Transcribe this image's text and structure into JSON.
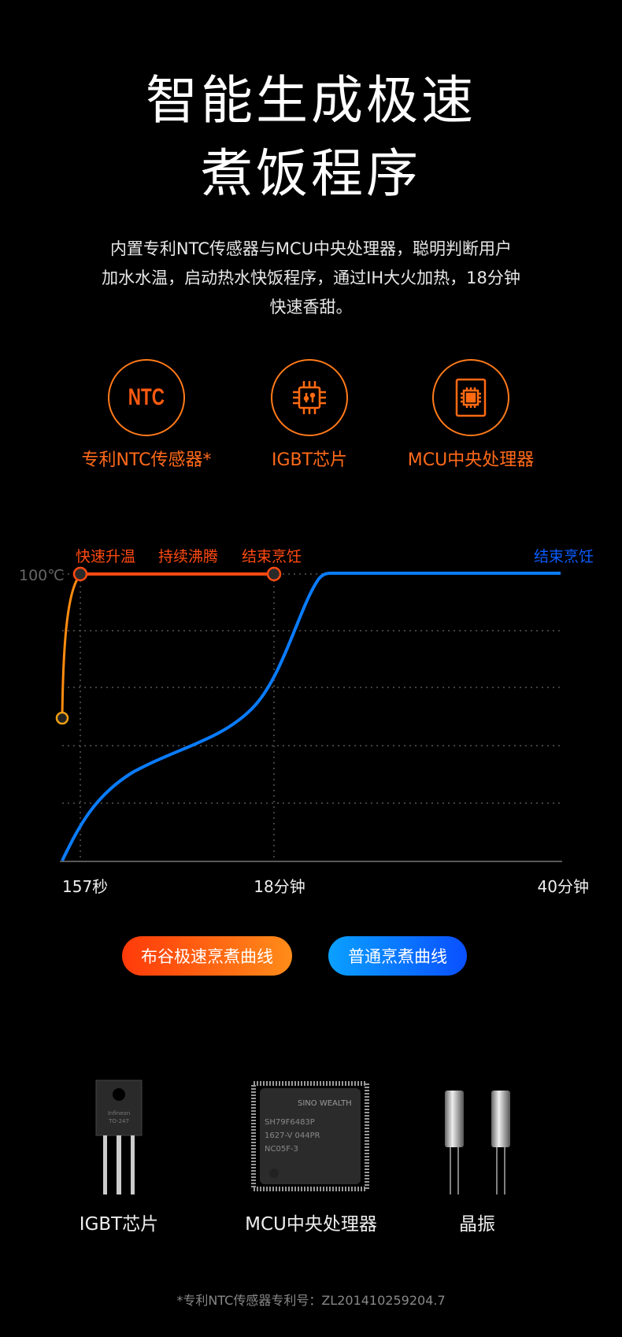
{
  "title": {
    "line1": "智能生成极速",
    "line2": "煮饭程序"
  },
  "description": {
    "line1": "内置专利NTC传感器与MCU中央处理器，聪明判断用户",
    "line2": "加水水温，启动热水快饭程序，通过IH大火加热，18分钟",
    "line3": "快速香甜。"
  },
  "features": [
    {
      "icon": "ntc-icon",
      "icon_text": "NTC",
      "label": "专利NTC传感器*"
    },
    {
      "icon": "igbt-chip-icon",
      "label": "IGBT芯片"
    },
    {
      "icon": "mcu-chip-icon",
      "label": "MCU中央处理器"
    }
  ],
  "chart_data": {
    "type": "line",
    "y_label": "100℃",
    "x_ticks": [
      "157秒",
      "18分钟",
      "40分钟"
    ],
    "stage_labels": [
      "快速升温",
      "持续沸腾",
      "结束烹饪"
    ],
    "blue_end_label": "结束烹饪",
    "grid": true,
    "series": [
      {
        "name": "布谷极速烹煮曲线",
        "color": "#ff4a10"
      },
      {
        "name": "普通烹煮曲线",
        "color": "#0a7cff"
      }
    ]
  },
  "legend": {
    "fast": "布谷极速烹煮曲线",
    "normal": "普通烹煮曲线"
  },
  "components": [
    {
      "label": "IGBT芯片",
      "chip_text": [
        "Infineon",
        "TO-247"
      ]
    },
    {
      "label": "MCU中央处理器",
      "chip_text": [
        "SINO WEALTH",
        "SH79F6483P",
        "1627-V   044PR",
        "NC05F-3"
      ]
    },
    {
      "label": "晶振"
    }
  ],
  "footnote": "*专利NTC传感器专利号：ZL201410259204.7"
}
